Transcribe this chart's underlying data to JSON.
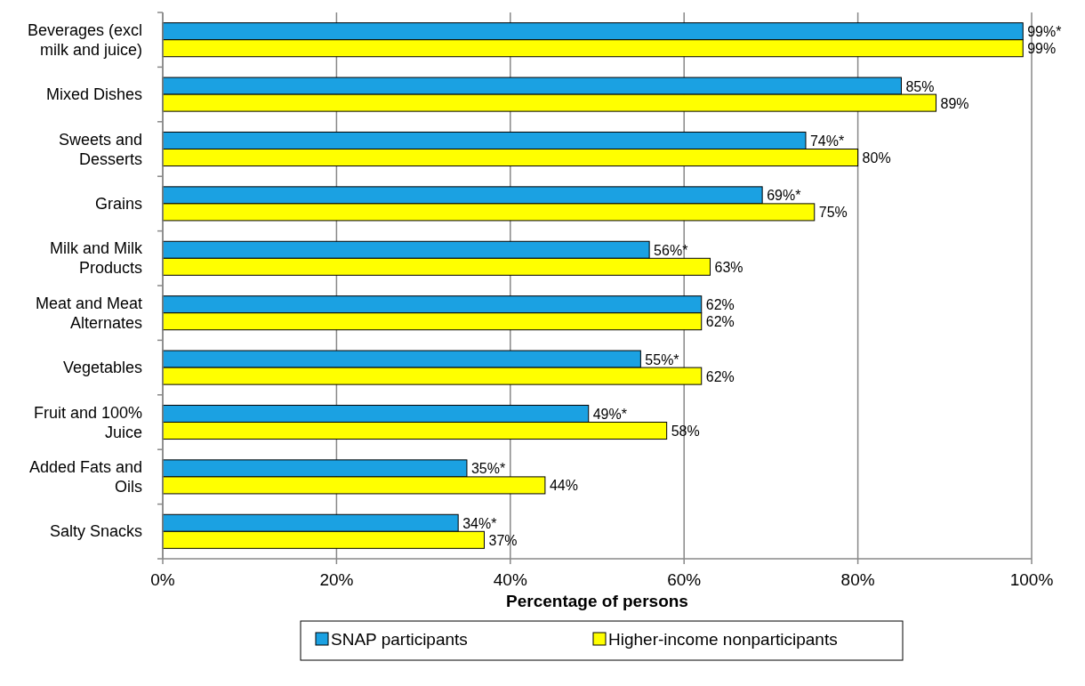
{
  "chart_data": {
    "type": "bar",
    "orientation": "horizontal",
    "xlabel": "Percentage of persons",
    "categories": [
      "Beverages (excl milk and juice)",
      "Mixed Dishes",
      "Sweets and Desserts",
      "Grains",
      "Milk and Milk Products",
      "Meat and Meat Alternates",
      "Vegetables",
      "Fruit and 100% Juice",
      "Added Fats and Oils",
      "Salty Snacks"
    ],
    "series": [
      {
        "name": "SNAP participants",
        "color": "#1ba1e2",
        "values": [
          99,
          85,
          74,
          69,
          56,
          62,
          55,
          49,
          35,
          34
        ],
        "value_labels": [
          "99%*",
          "85%",
          "74%*",
          "69%*",
          "56%*",
          "62%",
          "55%*",
          "49%*",
          "35%*",
          "34%*"
        ]
      },
      {
        "name": "Higher-income nonparticipants",
        "color": "#ffff00",
        "values": [
          99,
          89,
          80,
          75,
          63,
          62,
          62,
          58,
          44,
          37
        ],
        "value_labels": [
          "99%",
          "89%",
          "80%",
          "75%",
          "63%",
          "62%",
          "62%",
          "58%",
          "44%",
          "37%"
        ]
      }
    ],
    "xlim": [
      0,
      100
    ],
    "xticks": [
      {
        "value": 0,
        "label": "0%"
      },
      {
        "value": 20,
        "label": "20%"
      },
      {
        "value": 40,
        "label": "40%"
      },
      {
        "value": 60,
        "label": "60%"
      },
      {
        "value": 80,
        "label": "80%"
      },
      {
        "value": 100,
        "label": "100%"
      }
    ],
    "grid": "x",
    "legend": "bottom"
  }
}
